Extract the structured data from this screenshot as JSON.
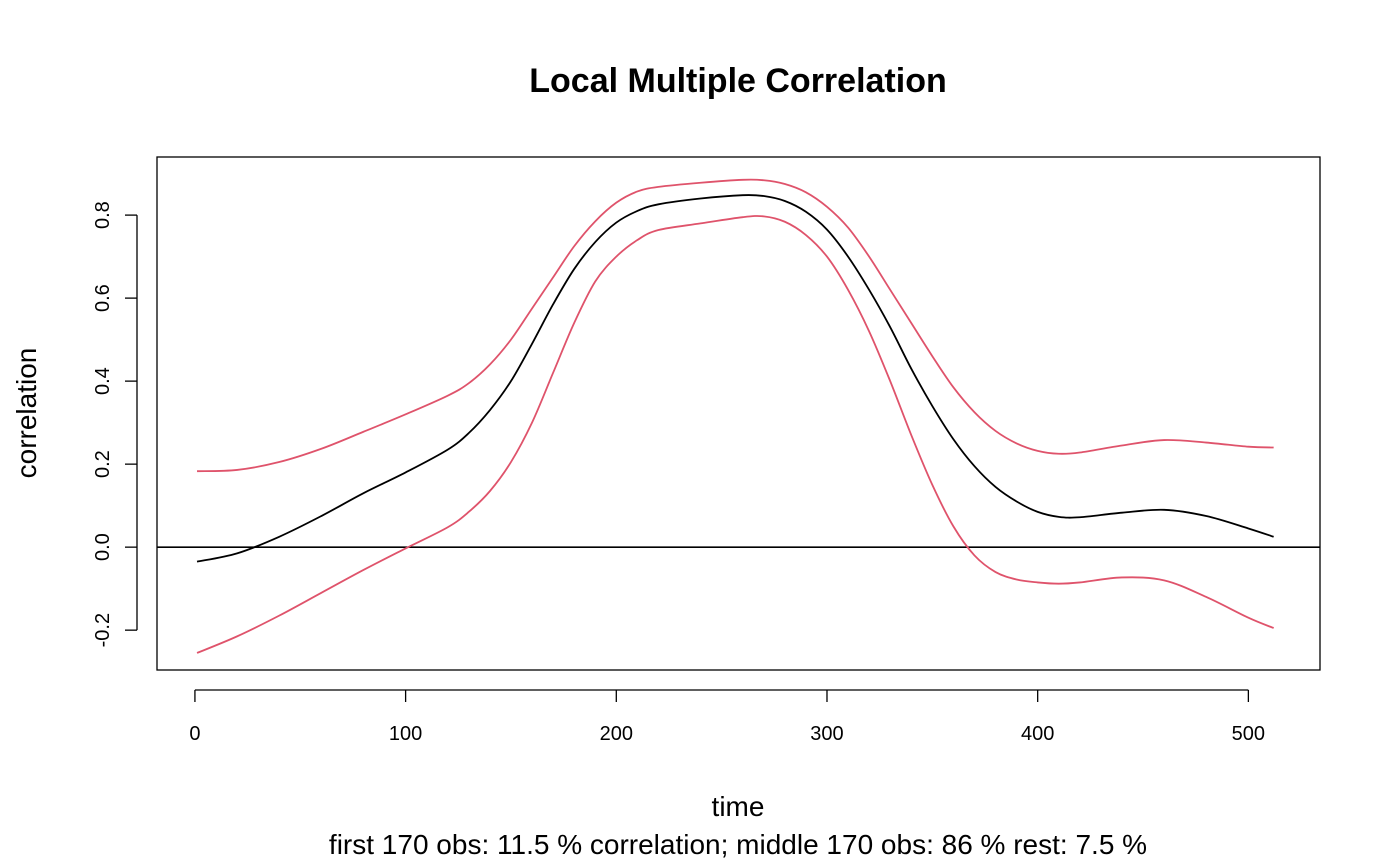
{
  "chart_data": {
    "type": "line",
    "title": "Local Multiple Correlation",
    "xlabel": "time",
    "ylabel": "correlation",
    "subtitle": "first 170 obs: 11.5 % correlation; middle 170 obs: 86 % rest: 7.5 %",
    "xlim": [
      -18,
      534
    ],
    "ylim": [
      -0.296,
      0.94
    ],
    "x_ticks": [
      0,
      100,
      200,
      300,
      400,
      500
    ],
    "x_tick_labels": [
      "0",
      "100",
      "200",
      "300",
      "400",
      "500"
    ],
    "y_ticks": [
      -0.2,
      0.0,
      0.2,
      0.4,
      0.6,
      0.8
    ],
    "y_tick_labels": [
      "-0.2",
      "0.0",
      "0.2",
      "0.4",
      "0.6",
      "0.8"
    ],
    "reference_line_y": 0.0,
    "grid": false,
    "colors": {
      "estimate": "#000000",
      "bounds": "#DF536B",
      "reference": "#000000"
    },
    "x": [
      1,
      20,
      40,
      60,
      80,
      100,
      120,
      130,
      140,
      150,
      160,
      170,
      180,
      190,
      200,
      210,
      220,
      240,
      260,
      270,
      280,
      290,
      300,
      310,
      320,
      330,
      340,
      350,
      360,
      370,
      380,
      390,
      400,
      410,
      420,
      440,
      460,
      480,
      500,
      512
    ],
    "series": [
      {
        "role": "upper",
        "values": [
          0.183,
          0.186,
          0.205,
          0.237,
          0.278,
          0.32,
          0.365,
          0.395,
          0.44,
          0.5,
          0.575,
          0.65,
          0.725,
          0.785,
          0.83,
          0.857,
          0.868,
          0.878,
          0.885,
          0.884,
          0.875,
          0.855,
          0.82,
          0.77,
          0.7,
          0.62,
          0.54,
          0.46,
          0.385,
          0.325,
          0.28,
          0.25,
          0.232,
          0.225,
          0.228,
          0.245,
          0.258,
          0.252,
          0.242,
          0.24
        ]
      },
      {
        "role": "estimate",
        "values": [
          -0.035,
          -0.015,
          0.025,
          0.075,
          0.13,
          0.18,
          0.235,
          0.275,
          0.33,
          0.4,
          0.49,
          0.585,
          0.67,
          0.735,
          0.782,
          0.81,
          0.826,
          0.84,
          0.848,
          0.846,
          0.834,
          0.808,
          0.765,
          0.7,
          0.62,
          0.53,
          0.43,
          0.34,
          0.26,
          0.195,
          0.145,
          0.11,
          0.085,
          0.073,
          0.072,
          0.083,
          0.09,
          0.075,
          0.045,
          0.025
        ]
      },
      {
        "role": "lower",
        "values": [
          -0.255,
          -0.215,
          -0.165,
          -0.11,
          -0.055,
          -0.003,
          0.048,
          0.085,
          0.135,
          0.205,
          0.3,
          0.42,
          0.54,
          0.64,
          0.7,
          0.74,
          0.764,
          0.78,
          0.795,
          0.797,
          0.784,
          0.752,
          0.7,
          0.62,
          0.52,
          0.4,
          0.27,
          0.15,
          0.05,
          -0.02,
          -0.06,
          -0.078,
          -0.085,
          -0.088,
          -0.085,
          -0.073,
          -0.08,
          -0.12,
          -0.17,
          -0.195
        ]
      }
    ]
  }
}
